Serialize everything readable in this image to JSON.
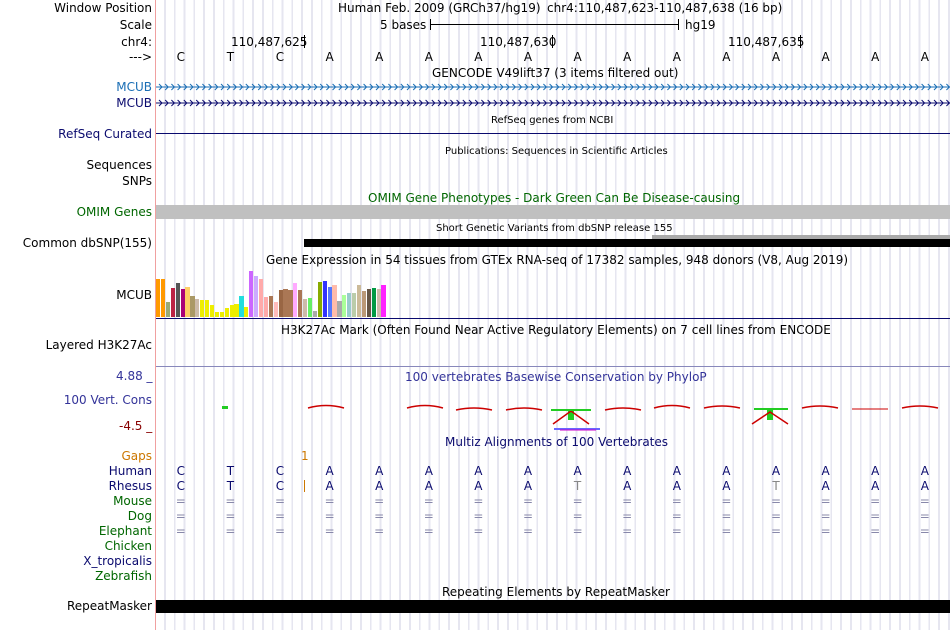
{
  "header": {
    "window_position_label": "Window Position",
    "assembly": "Human Feb. 2009 (GRCh37/hg19)",
    "coords": "chr4:110,487,623-110,487,638 (16 bp)",
    "scale_label": "Scale",
    "scale_text": "5 bases",
    "scale_db": "hg19",
    "chr_label": "chr4:",
    "arrow_label": "--->",
    "positions": [
      "110,487,625",
      "110,487,630",
      "110,487,635"
    ]
  },
  "bases": [
    "C",
    "T",
    "C",
    "A",
    "A",
    "A",
    "A",
    "A",
    "A",
    "A",
    "A",
    "A",
    "A",
    "A",
    "A",
    "A"
  ],
  "tracks": {
    "gencode": {
      "title": "GENCODE V49lift37 (3 items filtered out)",
      "rows": [
        "MCUB",
        "MCUB"
      ]
    },
    "refseq": {
      "title": "RefSeq genes from NCBI",
      "label": "RefSeq Curated"
    },
    "publications": {
      "title": "Publications: Sequences in Scientific Articles",
      "labels": [
        "Sequences",
        "SNPs"
      ]
    },
    "omim": {
      "title": "OMIM Gene Phenotypes - Dark Green Can Be Disease-causing",
      "label": "OMIM Genes"
    },
    "dbsnp": {
      "title": "Short Genetic Variants from dbSNP release 155",
      "label": "Common dbSNP(155)"
    },
    "gtex": {
      "title": "Gene Expression in 54 tissues from GTEx RNA-seq of 17382 samples, 948 donors (V8, Aug 2019)",
      "label": "MCUB",
      "bar_colors": [
        "#ff9900",
        "#ff9900",
        "#99aa77",
        "#bb2244",
        "#555555",
        "#aa0077",
        "#ffcc66",
        "#aa9966",
        "#ccbbaa",
        "#eeee00",
        "#eeee00",
        "#eeee00",
        "#eeee00",
        "#eeee00",
        "#eeee00",
        "#eeee00",
        "#eeee00",
        "#22dddd",
        "#eeee00",
        "#cc66ff",
        "#ccaaff",
        "#ffaaaa",
        "#ffaaaa",
        "#aa7755",
        "#ffbbbb",
        "#996644",
        "#aa7755",
        "#aa7755",
        "#ffaaff",
        "#aa7755",
        "#ccbbaa",
        "#66ee66",
        "#aaaaaa",
        "#88aa00",
        "#3333ff",
        "#5577ff",
        "#ffbbaa",
        "#aaaaaa",
        "#aaff99",
        "#99cccc",
        "#bbccaa",
        "#ccbb99",
        "#bb9977",
        "#665544",
        "#009944",
        "#ccbbaa",
        "#ff22ff"
      ],
      "bar_levels": [
        0.82,
        0.82,
        0.33,
        0.62,
        0.74,
        0.6,
        0.66,
        0.46,
        0.4,
        0.38,
        0.36,
        0.26,
        0.11,
        0.11,
        0.19,
        0.26,
        0.28,
        0.46,
        0.22,
        1.0,
        0.9,
        0.82,
        0.44,
        0.46,
        0.33,
        0.58,
        0.6,
        0.58,
        0.73,
        0.59,
        0.4,
        0.42,
        0.14,
        0.75,
        0.78,
        0.66,
        0.7,
        0.34,
        0.48,
        0.52,
        0.52,
        0.7,
        0.56,
        0.6,
        0.62,
        0.6,
        0.69
      ]
    },
    "h3k27ac": {
      "title": "H3K27Ac Mark (Often Found Near Active Regulatory Elements) on 7 cell lines from ENCODE",
      "label": "Layered H3K27Ac"
    },
    "phylop": {
      "title": "100 vertebrates Basewise Conservation by PhyloP",
      "label": "100 Vert. Cons",
      "ymax": "4.88 _",
      "ymin": "-4.5 _"
    },
    "multiz": {
      "title": "Multiz Alignments of 100 Vertebrates",
      "gaps_label": "Gaps",
      "gap_count": "1",
      "species": [
        "Human",
        "Rhesus",
        "Mouse",
        "Dog",
        "Elephant",
        "Chicken",
        "X_tropicalis",
        "Zebrafish"
      ],
      "rhesus": [
        "C",
        "T",
        "C",
        "A",
        "A",
        "A",
        "A",
        "A",
        "T",
        "A",
        "A",
        "A",
        "T",
        "A",
        "A",
        "A"
      ]
    },
    "repeatmasker": {
      "title": "Repeating Elements by RepeatMasker",
      "label": "RepeatMasker"
    }
  },
  "colors": {
    "gene_blue": "#1a6eb5",
    "navy": "#0a0a6e",
    "omim_green": "#006600",
    "orange": "#cc7700",
    "phylop_blue": "#333399"
  }
}
